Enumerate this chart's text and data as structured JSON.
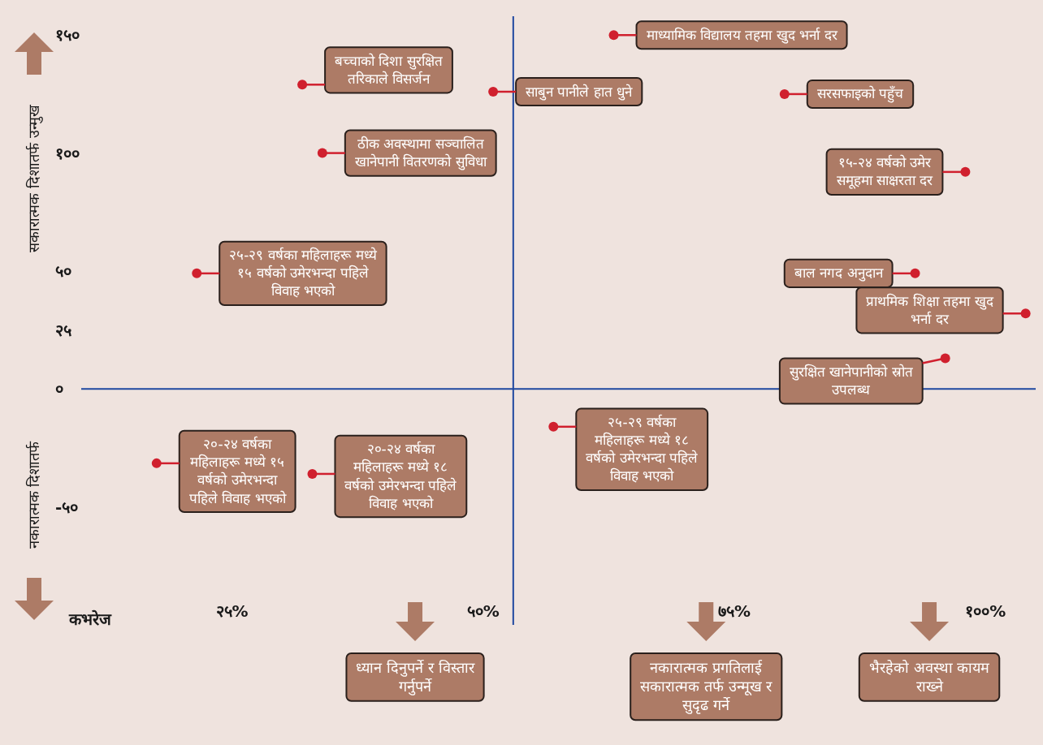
{
  "chart_data": {
    "type": "scatter",
    "xlabel": "कभरेज",
    "ylabel": "सकारात्मक दिशातर्फ उन्मुख",
    "xlim": [
      10,
      105
    ],
    "ylim": [
      -100,
      158
    ],
    "xticks": [
      {
        "value": 25,
        "label": "२५%"
      },
      {
        "value": 50,
        "label": "५०%"
      },
      {
        "value": 75,
        "label": "७५%"
      },
      {
        "value": 100,
        "label": "१००%"
      }
    ],
    "yticks": [
      {
        "value": 150,
        "label": "१५०"
      },
      {
        "value": 100,
        "label": "१००"
      },
      {
        "value": 50,
        "label": "५०"
      },
      {
        "value": 25,
        "label": "२५"
      },
      {
        "value": 0,
        "label": "०"
      },
      {
        "value": -50,
        "label": "-५०"
      }
    ],
    "x": [
      63,
      32,
      51,
      80,
      34,
      98,
      21.5,
      93,
      104,
      96,
      17.5,
      33,
      57
    ],
    "values": [
      150,
      129,
      126,
      125,
      100,
      92,
      49,
      49,
      32,
      13,
      -31.5,
      -36,
      -16
    ],
    "color": "#d0202e",
    "marker": "circle",
    "ref_lines": [
      {
        "axis": "x",
        "value": 53,
        "color": "#1f48a0"
      },
      {
        "axis": "y",
        "value": 0,
        "color": "#1f48a0"
      }
    ],
    "annotations": [
      {
        "text": "माध्यामिक विद्यालय तहमा खुद भर्ना दर",
        "x": 63,
        "y": 150
      },
      {
        "text": "बच्चाको दिशा सुरक्षित तरिकाले विसर्जन",
        "x": 32,
        "y": 129
      },
      {
        "text": "साबुन पानीले हात धुने",
        "x": 51,
        "y": 126
      },
      {
        "text": "सरसफाइको पहुँच",
        "x": 80,
        "y": 125
      },
      {
        "text": "ठीक अवस्थामा सञ्चालित खानेपानी वितरणको सुविधा",
        "x": 34,
        "y": 100
      },
      {
        "text": "१५-२४ वर्षको उमेर समूहमा साक्षरता दर",
        "x": 98,
        "y": 92
      },
      {
        "text": "२५-२९ वर्षका महिलाहरू मध्ये १५ वर्षको उमेरभन्दा पहिले विवाह भएको",
        "x": 21.5,
        "y": 49
      },
      {
        "text": "बाल नगद अनुदान",
        "x": 93,
        "y": 49
      },
      {
        "text": "प्राथमिक शिक्षा तहमा खुद भर्ना दर",
        "x": 104,
        "y": 32
      },
      {
        "text": "सुरक्षित खानेपानीको स्रोत उपलब्ध",
        "x": 96,
        "y": 13
      },
      {
        "text": "२०-२४ वर्षका महिलाहरू मध्ये १५ वर्षको उमेरभन्दा पहिले विवाह भएको",
        "x": 17.5,
        "y": -31.5
      },
      {
        "text": "२०-२४ वर्षका महिलाहरू मध्ये १८ वर्षको उमेरभन्दा पहिले विवाह भएको",
        "x": 33,
        "y": -36
      },
      {
        "text": "२५-२९ वर्षका महिलाहरू मध्ये १८ वर्षको उमेरभन्दा पहिले विवाह भएको",
        "x": 57,
        "y": -16
      },
      "नकारात्मक दिशातर्फ",
      "ध्यान दिनुपर्ने र विस्तार गर्नुपर्ने",
      "नकारात्मक प्रगतिलाई सकारात्मक तर्फ उन्मूख र सुदृढ गर्ने",
      "भैरहेको अवस्था कायम राख्ने"
    ]
  }
}
